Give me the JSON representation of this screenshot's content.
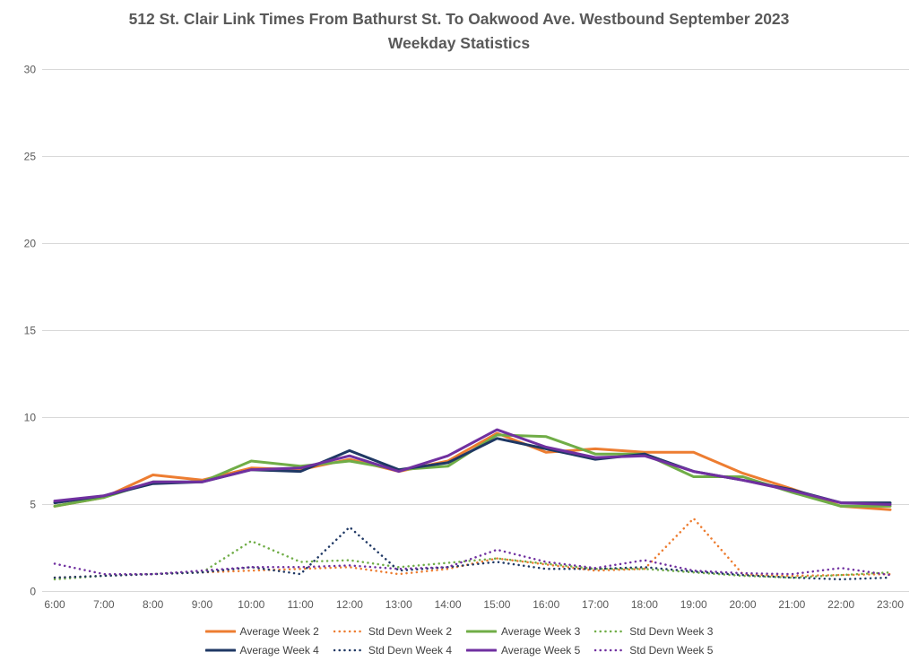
{
  "title": {
    "line1": "512 St. Clair Link Times From Bathurst St. To Oakwood Ave. Westbound September 2023",
    "line2": "Weekday Statistics"
  },
  "colors": {
    "week2_orange": "#ED7D31",
    "week3_green": "#70AD47",
    "week4_navy": "#1F3864",
    "week5_purple": "#7030A0",
    "gridline": "#D9D9D9",
    "axis_text": "#595959",
    "title_text": "#595959",
    "legend_text": "#404040"
  },
  "chart_data": {
    "type": "line",
    "title": "512 St. Clair Link Times From Bathurst St. To Oakwood Ave. Westbound September 2023 Weekday Statistics",
    "xlabel": "",
    "ylabel": "",
    "ylim": [
      0,
      30
    ],
    "yticks": [
      0,
      5,
      10,
      15,
      20,
      25,
      30
    ],
    "grid": "horizontal",
    "legend_position": "bottom",
    "x": [
      "6:00",
      "7:00",
      "8:00",
      "9:00",
      "10:00",
      "11:00",
      "12:00",
      "13:00",
      "14:00",
      "15:00",
      "16:00",
      "17:00",
      "18:00",
      "19:00",
      "20:00",
      "21:00",
      "22:00",
      "23:00"
    ],
    "series": [
      {
        "name": "Average Week 2",
        "style": "solid",
        "color": "#ED7D31",
        "values": [
          4.9,
          5.4,
          6.7,
          6.4,
          7.1,
          7.0,
          7.6,
          6.9,
          7.5,
          9.1,
          8.0,
          8.2,
          8.0,
          8.0,
          6.8,
          5.9,
          4.9,
          4.7
        ]
      },
      {
        "name": "Std Devn Week 2",
        "style": "dotted",
        "color": "#ED7D31",
        "values": [
          0.8,
          0.9,
          1.0,
          1.1,
          1.2,
          1.3,
          1.4,
          1.0,
          1.3,
          1.9,
          1.55,
          1.2,
          1.3,
          4.2,
          1.0,
          0.9,
          0.95,
          1.0
        ]
      },
      {
        "name": "Average Week 3",
        "style": "solid",
        "color": "#70AD47",
        "values": [
          4.9,
          5.4,
          6.3,
          6.3,
          7.5,
          7.2,
          7.5,
          7.0,
          7.2,
          9.0,
          8.9,
          7.9,
          7.9,
          6.6,
          6.6,
          5.7,
          4.9,
          4.9
        ]
      },
      {
        "name": "Std Devn Week 3",
        "style": "dotted",
        "color": "#70AD47",
        "values": [
          0.7,
          0.9,
          1.0,
          1.1,
          2.9,
          1.7,
          1.8,
          1.4,
          1.65,
          1.9,
          1.6,
          1.3,
          1.3,
          1.1,
          0.9,
          0.8,
          0.95,
          1.1
        ]
      },
      {
        "name": "Average Week 4",
        "style": "solid",
        "color": "#1F3864",
        "values": [
          5.1,
          5.5,
          6.2,
          6.3,
          7.0,
          6.9,
          8.1,
          7.0,
          7.4,
          8.8,
          8.2,
          7.6,
          7.9,
          6.9,
          6.4,
          5.85,
          5.1,
          5.1
        ]
      },
      {
        "name": "Std Devn Week 4",
        "style": "dotted",
        "color": "#1F3864",
        "values": [
          0.8,
          0.9,
          1.0,
          1.1,
          1.4,
          1.0,
          3.7,
          1.2,
          1.4,
          1.7,
          1.3,
          1.3,
          1.4,
          1.15,
          0.95,
          0.8,
          0.7,
          0.8
        ]
      },
      {
        "name": "Average Week 5",
        "style": "solid",
        "color": "#7030A0",
        "values": [
          5.2,
          5.5,
          6.3,
          6.3,
          7.0,
          7.1,
          7.8,
          6.9,
          7.8,
          9.3,
          8.3,
          7.7,
          7.8,
          6.9,
          6.4,
          5.8,
          5.1,
          5.0
        ]
      },
      {
        "name": "Std Devn Week 5",
        "style": "dotted",
        "color": "#7030A0",
        "values": [
          1.6,
          1.0,
          1.0,
          1.2,
          1.4,
          1.4,
          1.5,
          1.3,
          1.4,
          2.4,
          1.7,
          1.35,
          1.8,
          1.2,
          1.05,
          1.0,
          1.35,
          0.95
        ]
      }
    ]
  }
}
